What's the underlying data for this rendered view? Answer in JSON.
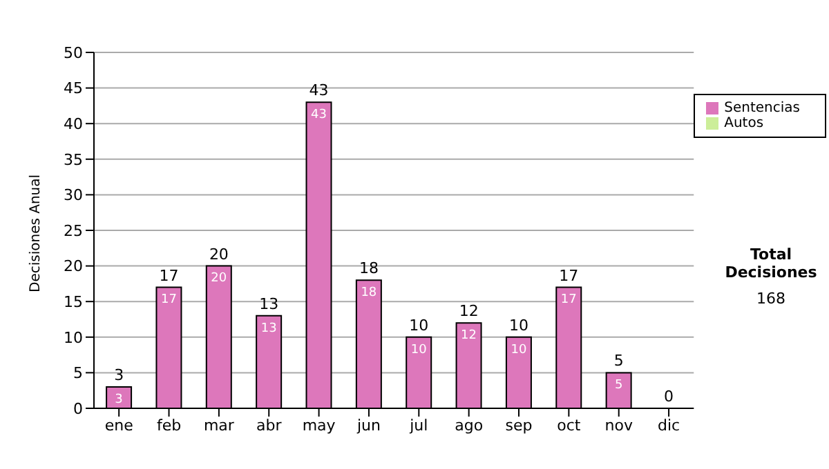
{
  "chart_data": {
    "type": "bar",
    "ylabel": "Decisiones Anual",
    "categories": [
      "ene",
      "feb",
      "mar",
      "abr",
      "may",
      "jun",
      "jul",
      "ago",
      "sep",
      "oct",
      "nov",
      "dic"
    ],
    "series": [
      {
        "name": "Sentencias",
        "color": "#dd77bb",
        "values": [
          3,
          17,
          20,
          13,
          43,
          18,
          10,
          12,
          10,
          17,
          5,
          0
        ],
        "value_labels": [
          "3",
          "17",
          "20",
          "13",
          "43",
          "18",
          "10",
          "12",
          "10",
          "17",
          "5",
          null
        ]
      },
      {
        "name": "Autos",
        "color": "#ccee99",
        "values": [
          0,
          0,
          0,
          0,
          0,
          0,
          0,
          0,
          0,
          0,
          0,
          0
        ]
      }
    ],
    "stacked": true,
    "totals": [
      "3",
      "17",
      "20",
      "13",
      "43",
      "18",
      "10",
      "12",
      "10",
      "17",
      "5",
      "0"
    ],
    "ylim": [
      0,
      50
    ],
    "yticks": [
      0,
      5,
      10,
      15,
      20,
      25,
      30,
      35,
      40,
      45,
      50
    ],
    "grid": "y",
    "legend": "right",
    "annotations": [
      "Total Decisiones",
      "168"
    ]
  }
}
